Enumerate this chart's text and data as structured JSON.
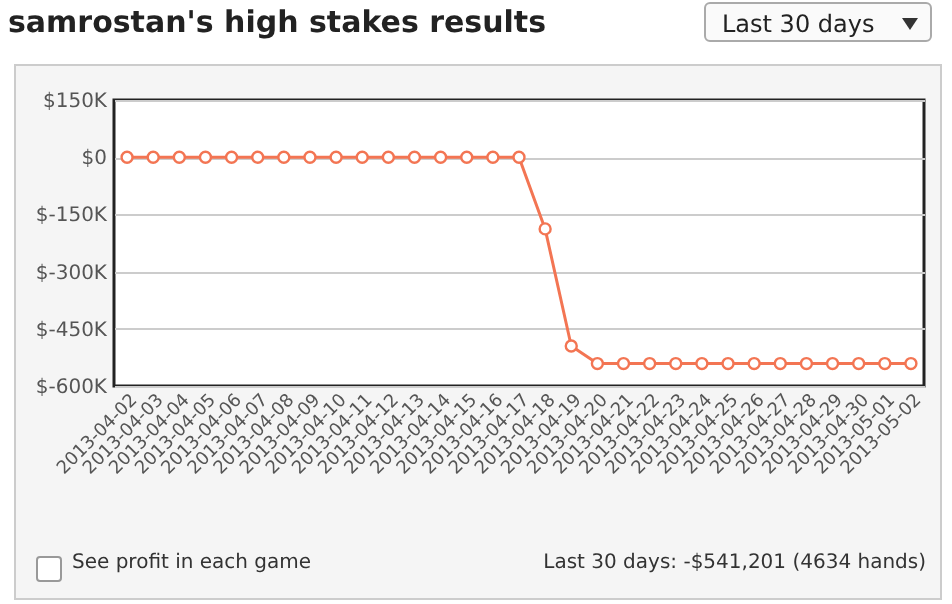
{
  "chart_data": {
    "type": "line",
    "title": "samrostan's high stakes results",
    "categories": [
      "2013-04-02",
      "2013-04-03",
      "2013-04-04",
      "2013-04-05",
      "2013-04-06",
      "2013-04-07",
      "2013-04-08",
      "2013-04-09",
      "2013-04-10",
      "2013-04-11",
      "2013-04-12",
      "2013-04-13",
      "2013-04-14",
      "2013-04-15",
      "2013-04-16",
      "2013-04-17",
      "2013-04-18",
      "2013-04-19",
      "2013-04-20",
      "2013-04-21",
      "2013-04-22",
      "2013-04-23",
      "2013-04-24",
      "2013-04-25",
      "2013-04-26",
      "2013-04-27",
      "2013-04-28",
      "2013-04-29",
      "2013-04-30",
      "2013-05-01",
      "2013-05-02"
    ],
    "series": [
      {
        "color": "#f37553",
        "values": [
          0,
          0,
          0,
          0,
          0,
          0,
          0,
          0,
          0,
          0,
          0,
          0,
          0,
          0,
          0,
          0,
          -188000,
          -495000,
          -541201,
          -541201,
          -541201,
          -541201,
          -541201,
          -541201,
          -541201,
          -541201,
          -541201,
          -541201,
          -541201,
          -541201,
          -541201
        ]
      }
    ],
    "ylim": [
      -600000,
      150000
    ],
    "yticks": [
      {
        "value": -600000,
        "label": "$-600K"
      },
      {
        "value": -450000,
        "label": "$-450K"
      },
      {
        "value": -300000,
        "label": "$-300K"
      },
      {
        "value": -150000,
        "label": "$-150K"
      },
      {
        "value": 0,
        "label": "$0"
      },
      {
        "value": 150000,
        "label": "$150K"
      }
    ],
    "grid": "y",
    "marker": "circle",
    "annotations": [
      "Last 30 days",
      "See profit in each game",
      "Last 30 days: -$541,201 (4634 hands)"
    ]
  }
}
